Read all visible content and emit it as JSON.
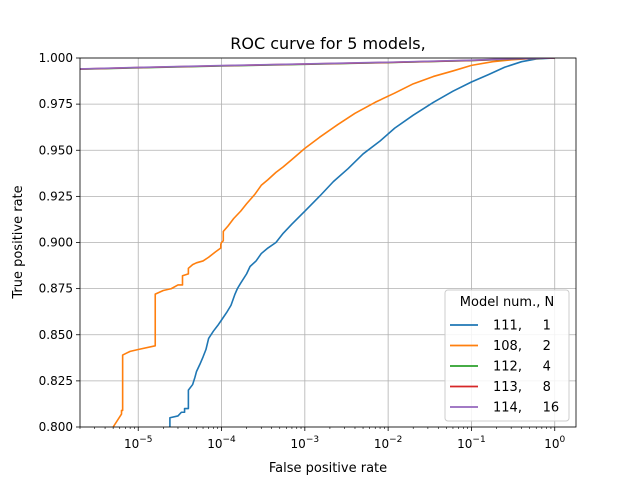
{
  "chart_data": {
    "type": "line",
    "title": "ROC curve for 5 models,",
    "xlabel": "False positive rate",
    "ylabel": "True positive rate",
    "xscale": "log",
    "xlim": [
      2e-06,
      1.8
    ],
    "ylim": [
      0.8,
      1.0
    ],
    "xticks": [
      {
        "value": 1e-05,
        "base": "10",
        "exp": "−5"
      },
      {
        "value": 0.0001,
        "base": "10",
        "exp": "−4"
      },
      {
        "value": 0.001,
        "base": "10",
        "exp": "−3"
      },
      {
        "value": 0.01,
        "base": "10",
        "exp": "−2"
      },
      {
        "value": 0.1,
        "base": "10",
        "exp": "−1"
      },
      {
        "value": 1,
        "base": "10",
        "exp": "0"
      }
    ],
    "yticks": [
      {
        "value": 0.8,
        "label": "0.800"
      },
      {
        "value": 0.825,
        "label": "0.825"
      },
      {
        "value": 0.85,
        "label": "0.850"
      },
      {
        "value": 0.875,
        "label": "0.875"
      },
      {
        "value": 0.9,
        "label": "0.900"
      },
      {
        "value": 0.925,
        "label": "0.925"
      },
      {
        "value": 0.95,
        "label": "0.950"
      },
      {
        "value": 0.975,
        "label": "0.975"
      },
      {
        "value": 1.0,
        "label": "1.000"
      }
    ],
    "grid": true,
    "legend": {
      "placement": "lower-right",
      "title": "Model num.,  N"
    },
    "series": [
      {
        "name": "111,     1",
        "color": "#1f77b4",
        "x": [
          2.4e-05,
          2.4e-05,
          3e-05,
          3.3e-05,
          3.6e-05,
          3.6e-05,
          4e-05,
          4e-05,
          4.5e-05,
          4.8e-05,
          5e-05,
          5.5e-05,
          6e-05,
          6.5e-05,
          7e-05,
          8e-05,
          9e-05,
          0.0001,
          0.000115,
          0.00013,
          0.000145,
          0.000155,
          0.00017,
          0.0002,
          0.00022,
          0.00026,
          0.0003,
          0.00036,
          0.00045,
          0.00055,
          0.0007,
          0.001,
          0.0015,
          0.0022,
          0.0033,
          0.005,
          0.008,
          0.012,
          0.02,
          0.035,
          0.06,
          0.1,
          0.16,
          0.25,
          0.4,
          0.6,
          1.0
        ],
        "y": [
          0.8,
          0.805,
          0.806,
          0.808,
          0.808,
          0.81,
          0.81,
          0.82,
          0.823,
          0.827,
          0.83,
          0.834,
          0.838,
          0.842,
          0.848,
          0.852,
          0.855,
          0.858,
          0.862,
          0.866,
          0.872,
          0.875,
          0.878,
          0.883,
          0.887,
          0.89,
          0.894,
          0.897,
          0.9,
          0.905,
          0.91,
          0.917,
          0.925,
          0.933,
          0.94,
          0.948,
          0.955,
          0.962,
          0.969,
          0.976,
          0.982,
          0.987,
          0.991,
          0.995,
          0.998,
          0.9995,
          1.0
        ]
      },
      {
        "name": "108,     2",
        "color": "#ff7f0e",
        "x": [
          5e-06,
          6.3e-06,
          6.3e-06,
          6.5e-06,
          6.5e-06,
          8e-06,
          1e-05,
          1.6e-05,
          1.6e-05,
          2e-05,
          2.5e-05,
          3e-05,
          3.4e-05,
          3.4e-05,
          4e-05,
          4e-05,
          4.5e-05,
          5e-05,
          6e-05,
          7e-05,
          8.5e-05,
          9.8e-05,
          9.8e-05,
          0.0001,
          0.000105,
          0.000105,
          0.00012,
          0.00014,
          0.00017,
          0.0002,
          0.00025,
          0.0003,
          0.00036,
          0.00045,
          0.00055,
          0.0007,
          0.001,
          0.0015,
          0.0025,
          0.004,
          0.007,
          0.012,
          0.02,
          0.035,
          0.06,
          0.1,
          0.18,
          0.3,
          0.5,
          1.0
        ],
        "y": [
          0.8,
          0.807,
          0.809,
          0.809,
          0.839,
          0.841,
          0.842,
          0.844,
          0.872,
          0.874,
          0.875,
          0.877,
          0.877,
          0.882,
          0.883,
          0.886,
          0.888,
          0.889,
          0.89,
          0.892,
          0.895,
          0.897,
          0.899,
          0.9,
          0.901,
          0.906,
          0.909,
          0.913,
          0.917,
          0.921,
          0.926,
          0.931,
          0.934,
          0.938,
          0.941,
          0.945,
          0.951,
          0.957,
          0.964,
          0.97,
          0.976,
          0.981,
          0.986,
          0.99,
          0.993,
          0.996,
          0.998,
          0.999,
          0.9997,
          1.0
        ]
      },
      {
        "name": "112,     4",
        "color": "#2ca02c",
        "x": [
          2e-06,
          1e-05,
          0.0001,
          0.001,
          0.01,
          0.1,
          0.3,
          1.0
        ],
        "y": [
          0.9939,
          0.9947,
          0.9957,
          0.9966,
          0.9975,
          0.9986,
          0.9994,
          1.0
        ]
      },
      {
        "name": "113,     8",
        "color": "#d62728",
        "x": [
          2e-06,
          1e-05,
          0.0001,
          0.001,
          0.01,
          0.1,
          0.3,
          1.0
        ],
        "y": [
          0.994,
          0.9948,
          0.9958,
          0.9967,
          0.9976,
          0.9987,
          0.9995,
          1.0
        ]
      },
      {
        "name": "114,     16",
        "color": "#9467bd",
        "x": [
          2e-06,
          1e-05,
          0.0001,
          0.001,
          0.01,
          0.1,
          0.3,
          1.0
        ],
        "y": [
          0.9941,
          0.9949,
          0.9959,
          0.9968,
          0.9977,
          0.9988,
          0.9996,
          1.0
        ]
      }
    ]
  }
}
